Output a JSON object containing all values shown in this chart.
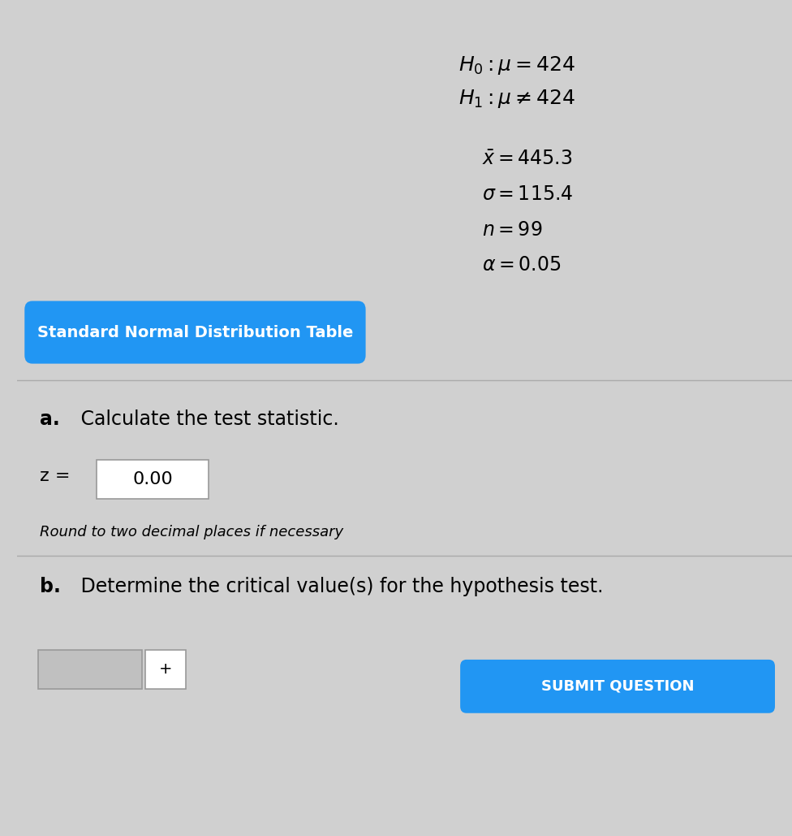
{
  "background_color": "#d0d0d0",
  "h0_text": "$H_0 : \\mu = 424$",
  "h1_text": "$H_1 : \\mu \\neq 424$",
  "xbar_text": "$\\bar{x} = 445.3$",
  "sigma_text": "$\\sigma = 115.4$",
  "n_text": "$n = 99$",
  "alpha_text": "$\\alpha = 0.05$",
  "button_text": "Standard Normal Distribution Table",
  "button_bg": "#2196F3",
  "button_text_color": "#ffffff",
  "section_a_label": "a.",
  "section_a_text": " Calculate the test statistic.",
  "z_label": "z =",
  "z_value": "0.00",
  "italic_note": "Round to two decimal places if necessary",
  "section_b_label": "b.",
  "section_b_text": " Determine the critical value(s) for the hypothesis test.",
  "submit_text": "SUBMIT QUESTION",
  "submit_bg": "#2196F3",
  "submit_text_color": "#ffffff",
  "divider_color": "#aaaaaa",
  "input_box_color": "#ffffff",
  "input_box_border": "#999999",
  "font_size_hypotheses": 18,
  "font_size_params": 17,
  "font_size_button": 14,
  "font_size_section": 17,
  "font_size_z": 16,
  "font_size_note": 13,
  "font_size_submit": 13
}
